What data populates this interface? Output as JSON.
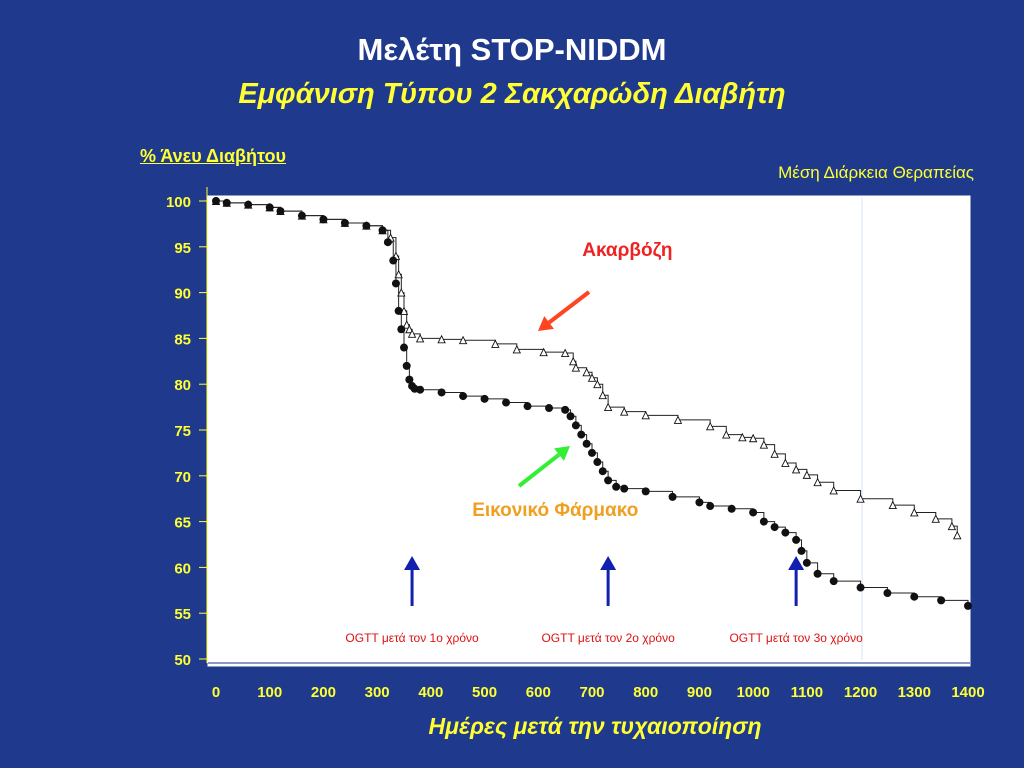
{
  "title": "Μελέτη STOP-NIDDM",
  "subtitle": "Εμφάνιση Τύπου 2 Σακχαρώδη Διαβήτη",
  "top_right_label": "Μέση Διάρκεια Θεραπείας",
  "chart_data": {
    "type": "line",
    "ylabel": "% Άνευ Διαβήτου",
    "xlabel": "Ημέρες μετά την τυχαιοποίηση",
    "xlim": [
      0,
      1400
    ],
    "ylim": [
      50,
      100
    ],
    "x_ticks": [
      0,
      100,
      200,
      300,
      400,
      500,
      600,
      700,
      800,
      900,
      1000,
      1100,
      1200,
      1300,
      1400
    ],
    "y_ticks": [
      50,
      55,
      60,
      65,
      70,
      75,
      80,
      85,
      90,
      95,
      100
    ],
    "grid": false,
    "colors": {
      "axis_text": "#ffff33",
      "acarbose_label": "#ee2222",
      "placebo_label": "#f0a020",
      "acarbose_arrow": "#ff4422",
      "placebo_arrow": "#33ee33",
      "ogtt_arrow": "#1020b0",
      "ogtt_text": "#dd1111"
    },
    "series": [
      {
        "name": "Ακαρβόζη",
        "marker": "triangle-open",
        "x": [
          0,
          20,
          60,
          100,
          120,
          160,
          200,
          240,
          280,
          310,
          325,
          335,
          340,
          345,
          350,
          355,
          360,
          365,
          380,
          420,
          460,
          520,
          560,
          610,
          650,
          665,
          670,
          690,
          700,
          710,
          720,
          730,
          760,
          800,
          860,
          920,
          950,
          980,
          1000,
          1020,
          1040,
          1060,
          1080,
          1100,
          1120,
          1150,
          1200,
          1260,
          1300,
          1340,
          1370,
          1380
        ],
        "y": [
          100,
          99.8,
          99.6,
          99.3,
          98.9,
          98.4,
          98.0,
          97.6,
          97.3,
          96.8,
          96.0,
          94.0,
          92.0,
          90.0,
          88.0,
          86.5,
          86.0,
          85.5,
          85.0,
          84.9,
          84.8,
          84.4,
          83.8,
          83.5,
          83.4,
          82.5,
          81.8,
          81.3,
          80.7,
          80.0,
          78.8,
          77.5,
          77.0,
          76.6,
          76.1,
          75.4,
          74.5,
          74.2,
          74.1,
          73.4,
          72.4,
          71.4,
          70.7,
          70.1,
          69.3,
          68.4,
          67.5,
          66.8,
          66.0,
          65.3,
          64.5,
          63.5
        ]
      },
      {
        "name": "Εικονικό Φάρμακο",
        "marker": "circle-filled",
        "x": [
          0,
          20,
          60,
          100,
          120,
          160,
          200,
          240,
          280,
          310,
          320,
          330,
          335,
          340,
          345,
          350,
          355,
          360,
          365,
          370,
          380,
          420,
          460,
          500,
          540,
          580,
          620,
          650,
          660,
          670,
          680,
          690,
          700,
          710,
          720,
          730,
          745,
          760,
          800,
          850,
          900,
          920,
          960,
          1000,
          1020,
          1040,
          1060,
          1080,
          1090,
          1100,
          1120,
          1150,
          1200,
          1250,
          1300,
          1350,
          1400
        ],
        "y": [
          100,
          99.8,
          99.6,
          99.3,
          98.9,
          98.4,
          98.0,
          97.6,
          97.3,
          96.8,
          95.5,
          93.5,
          91.0,
          88.0,
          86.0,
          84.0,
          82.0,
          80.5,
          79.8,
          79.5,
          79.4,
          79.1,
          78.7,
          78.4,
          78.0,
          77.6,
          77.4,
          77.2,
          76.5,
          75.5,
          74.5,
          73.5,
          72.5,
          71.5,
          70.5,
          69.5,
          68.8,
          68.6,
          68.3,
          67.7,
          67.1,
          66.7,
          66.4,
          66.0,
          65.0,
          64.4,
          63.8,
          63.0,
          61.8,
          60.5,
          59.3,
          58.5,
          57.8,
          57.2,
          56.8,
          56.4,
          55.8
        ]
      }
    ],
    "annotations": [
      {
        "text": "Ακαρβόζη",
        "x": 710,
        "y": 93.8
      },
      {
        "text": "Εικονικό Φάρμακο",
        "x": 680,
        "y": 66.4
      }
    ],
    "ogtt_markers": [
      {
        "x": 365,
        "label": "OGTT μετά τον 1ο χρόνο"
      },
      {
        "x": 730,
        "label": "OGTT μετά τον 2ο χρόνο"
      },
      {
        "x": 1080,
        "label": "OGTT μετά τον 3ο χρόνο"
      }
    ]
  }
}
